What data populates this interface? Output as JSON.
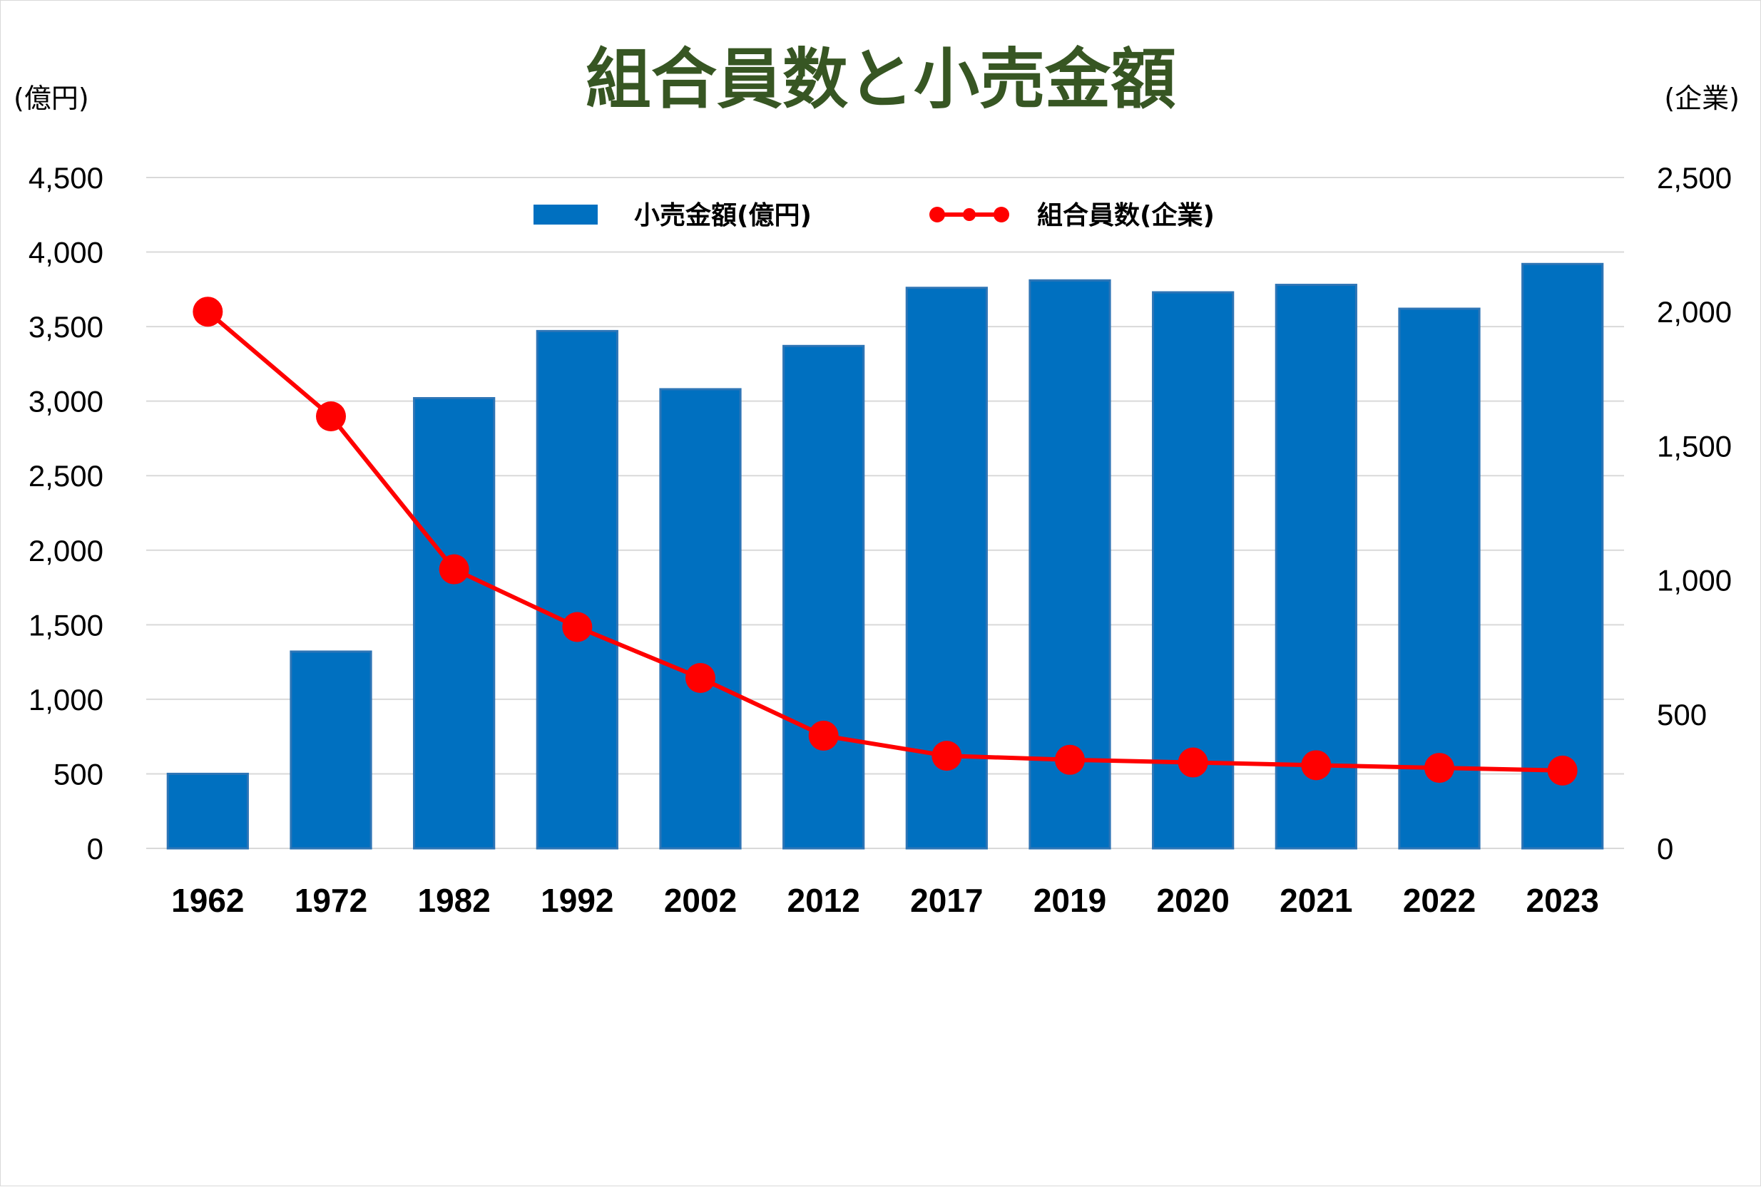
{
  "chart_data": {
    "type": "bar",
    "title": "組合員数と小売金額",
    "left_axis_unit": "(億円)",
    "right_axis_unit": "(企業)",
    "categories": [
      "1962",
      "1972",
      "1982",
      "1992",
      "2002",
      "2012",
      "2017",
      "2019",
      "2020",
      "2021",
      "2022",
      "2023"
    ],
    "ylim_left": [
      0,
      4500
    ],
    "ylim_right": [
      0,
      2500
    ],
    "yticks_left": [
      "0",
      "500",
      "1,000",
      "1,500",
      "2,000",
      "2,500",
      "3,000",
      "3,500",
      "4,000",
      "4,500"
    ],
    "yticks_right": [
      "0",
      "500",
      "1,000",
      "1,500",
      "2,000",
      "2,500"
    ],
    "grid": true,
    "legend_position": "top-center",
    "series": [
      {
        "name": "小売金額(億円)",
        "type": "bar",
        "axis": "left",
        "color": "#0070C0",
        "values": [
          500,
          1320,
          3020,
          3470,
          3080,
          3370,
          3760,
          3810,
          3730,
          3780,
          3620,
          3920
        ]
      },
      {
        "name": "組合員数(企業)",
        "type": "line",
        "axis": "right",
        "color": "#FF0000",
        "values": [
          2000,
          1610,
          1040,
          825,
          635,
          420,
          345,
          330,
          320,
          310,
          300,
          290
        ]
      }
    ]
  }
}
